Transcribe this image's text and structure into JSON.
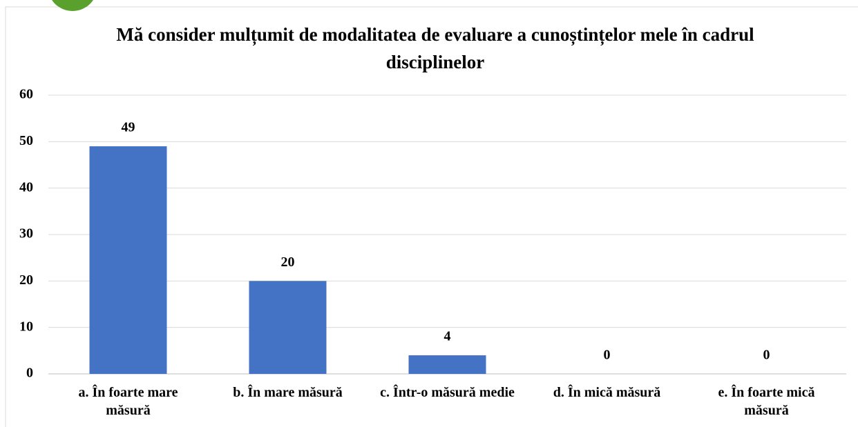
{
  "chart_data": {
    "type": "bar",
    "title": "Mă consider mulțumit de modalitatea de evaluare a cunoștințelor mele în cadrul disciplinelor",
    "categories": [
      "a. În foarte mare măsură",
      "b. În mare măsură",
      "c. Într-o măsură medie",
      "d. În mică măsură",
      "e. În foarte mică măsură"
    ],
    "values": [
      49,
      20,
      4,
      0,
      0
    ],
    "color": "#4472c4",
    "ylim": [
      0,
      60
    ],
    "yticks": [
      0,
      10,
      20,
      30,
      40,
      50,
      60
    ],
    "grid": true
  }
}
